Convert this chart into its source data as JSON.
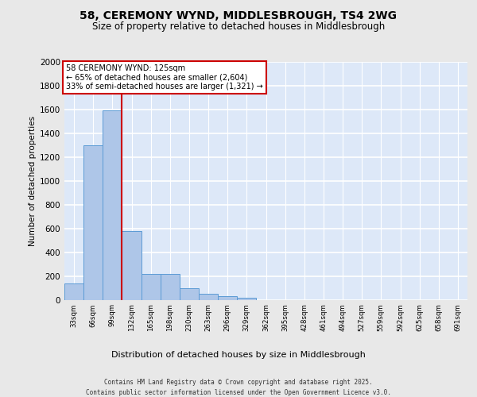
{
  "title_line1": "58, CEREMONY WYND, MIDDLESBROUGH, TS4 2WG",
  "title_line2": "Size of property relative to detached houses in Middlesbrough",
  "xlabel": "Distribution of detached houses by size in Middlesbrough",
  "ylabel": "Number of detached properties",
  "categories": [
    "33sqm",
    "66sqm",
    "99sqm",
    "132sqm",
    "165sqm",
    "198sqm",
    "230sqm",
    "263sqm",
    "296sqm",
    "329sqm",
    "362sqm",
    "395sqm",
    "428sqm",
    "461sqm",
    "494sqm",
    "527sqm",
    "559sqm",
    "592sqm",
    "625sqm",
    "658sqm",
    "691sqm"
  ],
  "values": [
    140,
    1295,
    1590,
    580,
    220,
    220,
    100,
    50,
    30,
    20,
    0,
    0,
    0,
    0,
    0,
    0,
    0,
    0,
    0,
    0,
    0
  ],
  "bar_color": "#aec6e8",
  "bar_edge_color": "#5b9bd5",
  "vline_x": 3.0,
  "annotation_line1": "58 CEREMONY WYND: 125sqm",
  "annotation_line2": "← 65% of detached houses are smaller (2,604)",
  "annotation_line3": "33% of semi-detached houses are larger (1,321) →",
  "annotation_box_facecolor": "#ffffff",
  "annotation_box_edgecolor": "#cc0000",
  "vline_color": "#cc0000",
  "ylim_max": 2000,
  "yticks": [
    0,
    200,
    400,
    600,
    800,
    1000,
    1200,
    1400,
    1600,
    1800,
    2000
  ],
  "plot_bg_color": "#dde8f8",
  "fig_bg_color": "#e8e8e8",
  "grid_color": "#ffffff",
  "footer_line1": "Contains HM Land Registry data © Crown copyright and database right 2025.",
  "footer_line2": "Contains public sector information licensed under the Open Government Licence v3.0."
}
